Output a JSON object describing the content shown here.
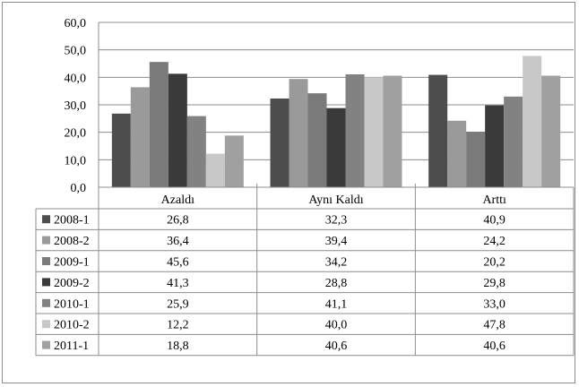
{
  "chart_data": {
    "type": "bar",
    "categories": [
      "Azaldı",
      "Aynı Kaldı",
      "Arttı"
    ],
    "series": [
      {
        "name": "2008-1",
        "color": "#4d4d4d",
        "values": [
          26.8,
          32.3,
          40.9
        ],
        "labels": [
          "26,8",
          "32,3",
          "40,9"
        ]
      },
      {
        "name": "2008-2",
        "color": "#9a9a9a",
        "values": [
          36.4,
          39.4,
          24.2
        ],
        "labels": [
          "36,4",
          "39,4",
          "24,2"
        ]
      },
      {
        "name": "2009-1",
        "color": "#7a7a7a",
        "values": [
          45.6,
          34.2,
          20.2
        ],
        "labels": [
          "45,6",
          "34,2",
          "20,2"
        ]
      },
      {
        "name": "2009-2",
        "color": "#3a3a3a",
        "values": [
          41.3,
          28.8,
          29.8
        ],
        "labels": [
          "41,3",
          "28,8",
          "29,8"
        ]
      },
      {
        "name": "2010-1",
        "color": "#828282",
        "values": [
          25.9,
          41.1,
          33.0
        ],
        "labels": [
          "25,9",
          "41,1",
          "33,0"
        ]
      },
      {
        "name": "2010-2",
        "color": "#c8c8c8",
        "values": [
          12.2,
          40.0,
          47.8
        ],
        "labels": [
          "12,2",
          "40,0",
          "47,8"
        ]
      },
      {
        "name": "2011-1",
        "color": "#a0a0a0",
        "values": [
          18.8,
          40.6,
          40.6
        ],
        "labels": [
          "18,8",
          "40,6",
          "40,6"
        ]
      }
    ],
    "ylim": [
      0,
      60
    ],
    "yticks": [
      0,
      10,
      20,
      30,
      40,
      50,
      60
    ],
    "ytick_labels": [
      "0,0",
      "10,0",
      "20,0",
      "30,0",
      "40,0",
      "50,0",
      "60,0"
    ],
    "grid": true,
    "legend": "data-table"
  }
}
